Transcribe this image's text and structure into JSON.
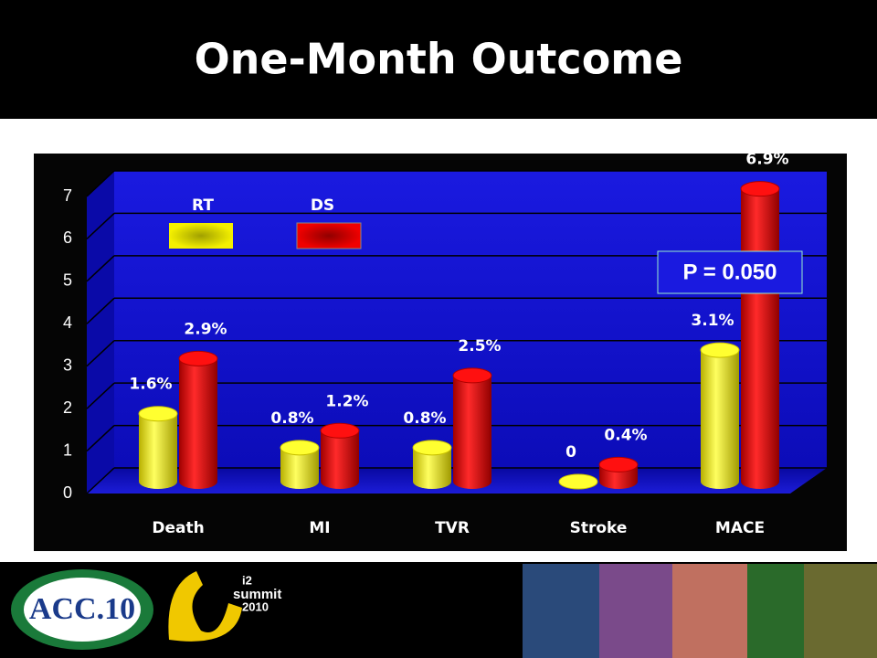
{
  "chart_data": {
    "type": "bar3d",
    "title": "One-Month Outcome",
    "annotation": "P = 0.050",
    "categories": [
      "Death",
      "MI",
      "TVR",
      "Stroke",
      "MACE"
    ],
    "series": [
      {
        "name": "RT",
        "color": "#f2f000",
        "values": [
          1.6,
          0.8,
          0.8,
          0,
          3.1
        ],
        "value_labels": [
          "1.6%",
          "0.8%",
          "0.8%",
          "0",
          "3.1%"
        ]
      },
      {
        "name": "DS",
        "color": "#e00000",
        "values": [
          2.9,
          1.2,
          2.5,
          0.4,
          6.9
        ],
        "value_labels": [
          "2.9%",
          "1.2%",
          "2.5%",
          "0.4%",
          "6.9%"
        ]
      }
    ],
    "ylim": [
      0,
      7
    ],
    "yticks": [
      0,
      1,
      2,
      3,
      4,
      5,
      6,
      7
    ],
    "grid": true
  },
  "footer": {
    "logo1": "ACC.10",
    "logo2_top": "i2",
    "logo2_mid": "summit",
    "logo2_bottom": "2010"
  }
}
